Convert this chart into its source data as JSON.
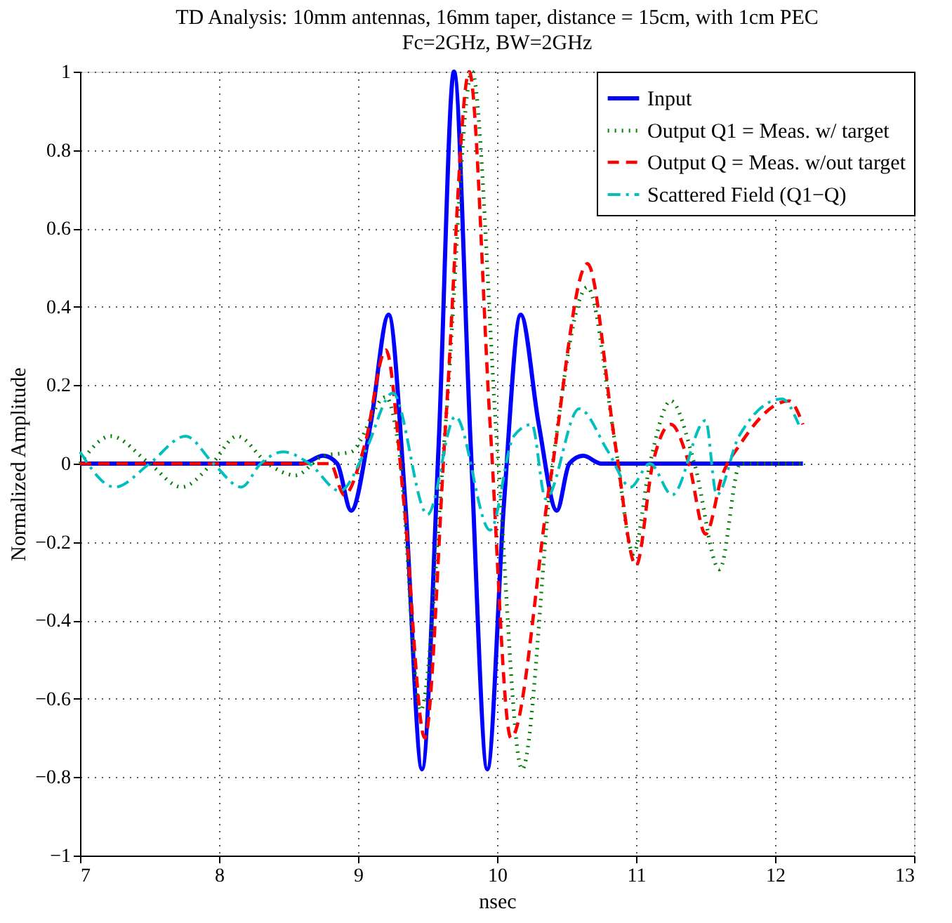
{
  "chart_data": {
    "type": "line",
    "title": "TD Analysis:  10mm antennas, 16mm taper, distance = 15cm, with 1cm PEC",
    "subtitle": "Fc=2GHz, BW=2GHz",
    "xlabel": "nsec",
    "ylabel": "Normalized Amplitude",
    "xlim": [
      7,
      13
    ],
    "xticks": [
      7,
      8,
      9,
      10,
      11,
      12,
      13
    ],
    "ylim": [
      -1,
      1
    ],
    "yticks": [
      -1,
      -0.8,
      -0.6,
      -0.4,
      -0.2,
      0,
      0.2,
      0.4,
      0.6,
      0.8,
      1
    ],
    "grid": true,
    "legend": "top right",
    "marker": "none",
    "series": [
      {
        "name": "Input",
        "color": "#0000ff",
        "line_style": "solid",
        "x": [
          7,
          8,
          8.6,
          8.75,
          8.85,
          8.95,
          9.09,
          9.22,
          9.34,
          9.46,
          9.58,
          9.69,
          9.81,
          9.93,
          10.05,
          10.17,
          10.3,
          10.43,
          10.52,
          10.62,
          10.75,
          10.85,
          12.2
        ],
        "values": [
          0,
          0,
          0,
          0.02,
          0,
          -0.12,
          0.1,
          0.38,
          -0.1,
          -0.78,
          0.05,
          1.0,
          0.05,
          -0.78,
          -0.1,
          0.38,
          0.1,
          -0.12,
          0,
          0.02,
          0,
          0,
          0
        ]
      },
      {
        "name": "Output Q1 = Meas. w/ target",
        "color": "#008000",
        "line_style": "dotted",
        "x": [
          7,
          7.22,
          7.5,
          7.73,
          7.95,
          8.13,
          8.35,
          8.55,
          8.75,
          8.95,
          9.2,
          9.3,
          9.45,
          9.63,
          9.82,
          10.0,
          10.18,
          10.4,
          10.65,
          10.85,
          10.98,
          11.1,
          11.25,
          11.42,
          11.6,
          11.75,
          12.2
        ],
        "values": [
          0,
          0.07,
          0,
          -0.06,
          0,
          0.07,
          0,
          -0.03,
          0.02,
          0.03,
          0.17,
          0.02,
          -0.63,
          0.1,
          1.0,
          0.05,
          -0.78,
          0,
          0.45,
          0.05,
          -0.23,
          0,
          0.16,
          0,
          -0.27,
          0,
          0
        ]
      },
      {
        "name": "Output Q = Meas. w/out target",
        "color": "#ff0000",
        "line_style": "dashed",
        "x": [
          7,
          8.8,
          8.9,
          9.05,
          9.2,
          9.33,
          9.48,
          9.63,
          9.8,
          9.95,
          10.1,
          10.38,
          10.65,
          10.85,
          11.0,
          11.12,
          11.25,
          11.38,
          11.5,
          11.62,
          11.75,
          12.1,
          12.2
        ],
        "values": [
          0,
          0,
          -0.08,
          0.05,
          0.29,
          -0.1,
          -0.7,
          0.1,
          1.0,
          0.1,
          -0.7,
          -0.05,
          0.51,
          0.05,
          -0.26,
          0,
          0.1,
          0,
          -0.18,
          -0.03,
          0.05,
          0.16,
          0.1
        ]
      },
      {
        "name": "Scattered Field (Q1−Q)",
        "color": "#00bfbf",
        "line_style": "dashdot",
        "x": [
          7,
          7.25,
          7.5,
          7.76,
          7.96,
          8.16,
          8.3,
          8.46,
          8.65,
          8.87,
          9.05,
          9.25,
          9.5,
          9.7,
          9.95,
          10.12,
          10.25,
          10.35,
          10.59,
          10.8,
          10.96,
          11.1,
          11.26,
          11.5,
          11.58,
          11.74,
          12.05,
          12.17
        ],
        "values": [
          0.03,
          -0.06,
          0,
          0.07,
          0,
          -0.06,
          0,
          0.03,
          0,
          -0.07,
          0.03,
          0.18,
          -0.13,
          0.12,
          -0.17,
          0.07,
          0.1,
          -0.09,
          0.14,
          0.03,
          -0.06,
          0,
          -0.08,
          0.11,
          -0.08,
          0.07,
          0.165,
          0.1
        ]
      }
    ]
  }
}
